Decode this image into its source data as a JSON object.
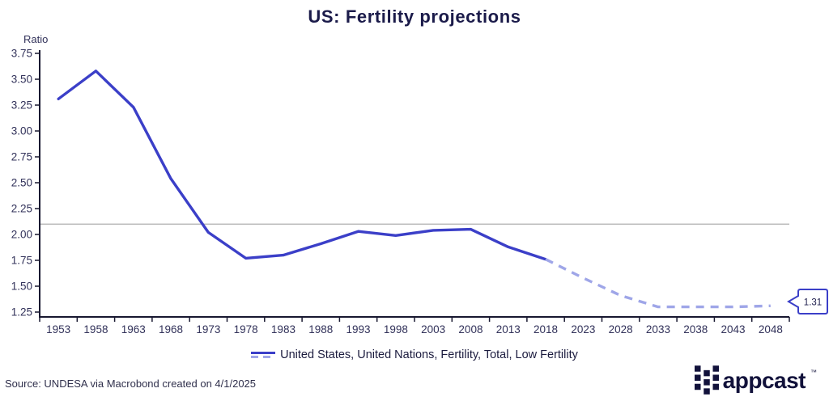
{
  "title": "US: Fertility projections",
  "axis_unit_label": "Ratio",
  "legend": {
    "label": "United States, United Nations, Fertility, Total, Low Fertility"
  },
  "callout": {
    "label": "1.31"
  },
  "source": "Source: UNDESA via Macrobond created on 4/1/2025",
  "logo": {
    "text": "appcast",
    "tm": "™",
    "icon": "appcast-grid-icon"
  },
  "colors": {
    "background": "#ffffff",
    "line_solid": "#3b3fc8",
    "line_dashed": "#9fa6e8",
    "reference_line": "#a6a6a6",
    "axis": "#181830",
    "title_text": "#1b1b4a",
    "tick_text": "#32325a",
    "legend_text": "#1b1b3e",
    "source_text": "#30304c",
    "logo": "#12123b",
    "callout_border": "#3b3fc8",
    "callout_text": "#1b1b4a"
  },
  "chart_data": {
    "type": "line",
    "title": "US: Fertility projections",
    "xlabel": "",
    "ylabel": "Ratio",
    "x": [
      1953,
      1958,
      1963,
      1968,
      1973,
      1978,
      1983,
      1988,
      1993,
      1998,
      2003,
      2008,
      2013,
      2018,
      2023,
      2028,
      2033,
      2038,
      2043,
      2048
    ],
    "series": [
      {
        "name": "United States, United Nations, Fertility, Total, Low Fertility",
        "values": [
          3.31,
          3.58,
          3.23,
          2.54,
          2.02,
          1.77,
          1.8,
          1.91,
          2.03,
          1.99,
          2.04,
          2.05,
          1.88,
          1.76,
          1.58,
          1.41,
          1.3,
          1.3,
          1.3,
          1.31
        ],
        "solid_through_index": 13,
        "projection_style": "dashed"
      }
    ],
    "reference_line": 2.1,
    "ylim": [
      1.25,
      3.75
    ],
    "y_ticks": [
      3.75,
      3.5,
      3.25,
      3.0,
      2.75,
      2.5,
      2.25,
      2.0,
      1.75,
      1.5,
      1.25
    ],
    "y_tick_labels": [
      "3.75",
      "3.50",
      "3.25",
      "3.00",
      "2.75",
      "2.50",
      "2.25",
      "2.00",
      "1.75",
      "1.50",
      "1.25"
    ],
    "end_label": "1.31",
    "grid": false,
    "legend_position": "bottom"
  }
}
